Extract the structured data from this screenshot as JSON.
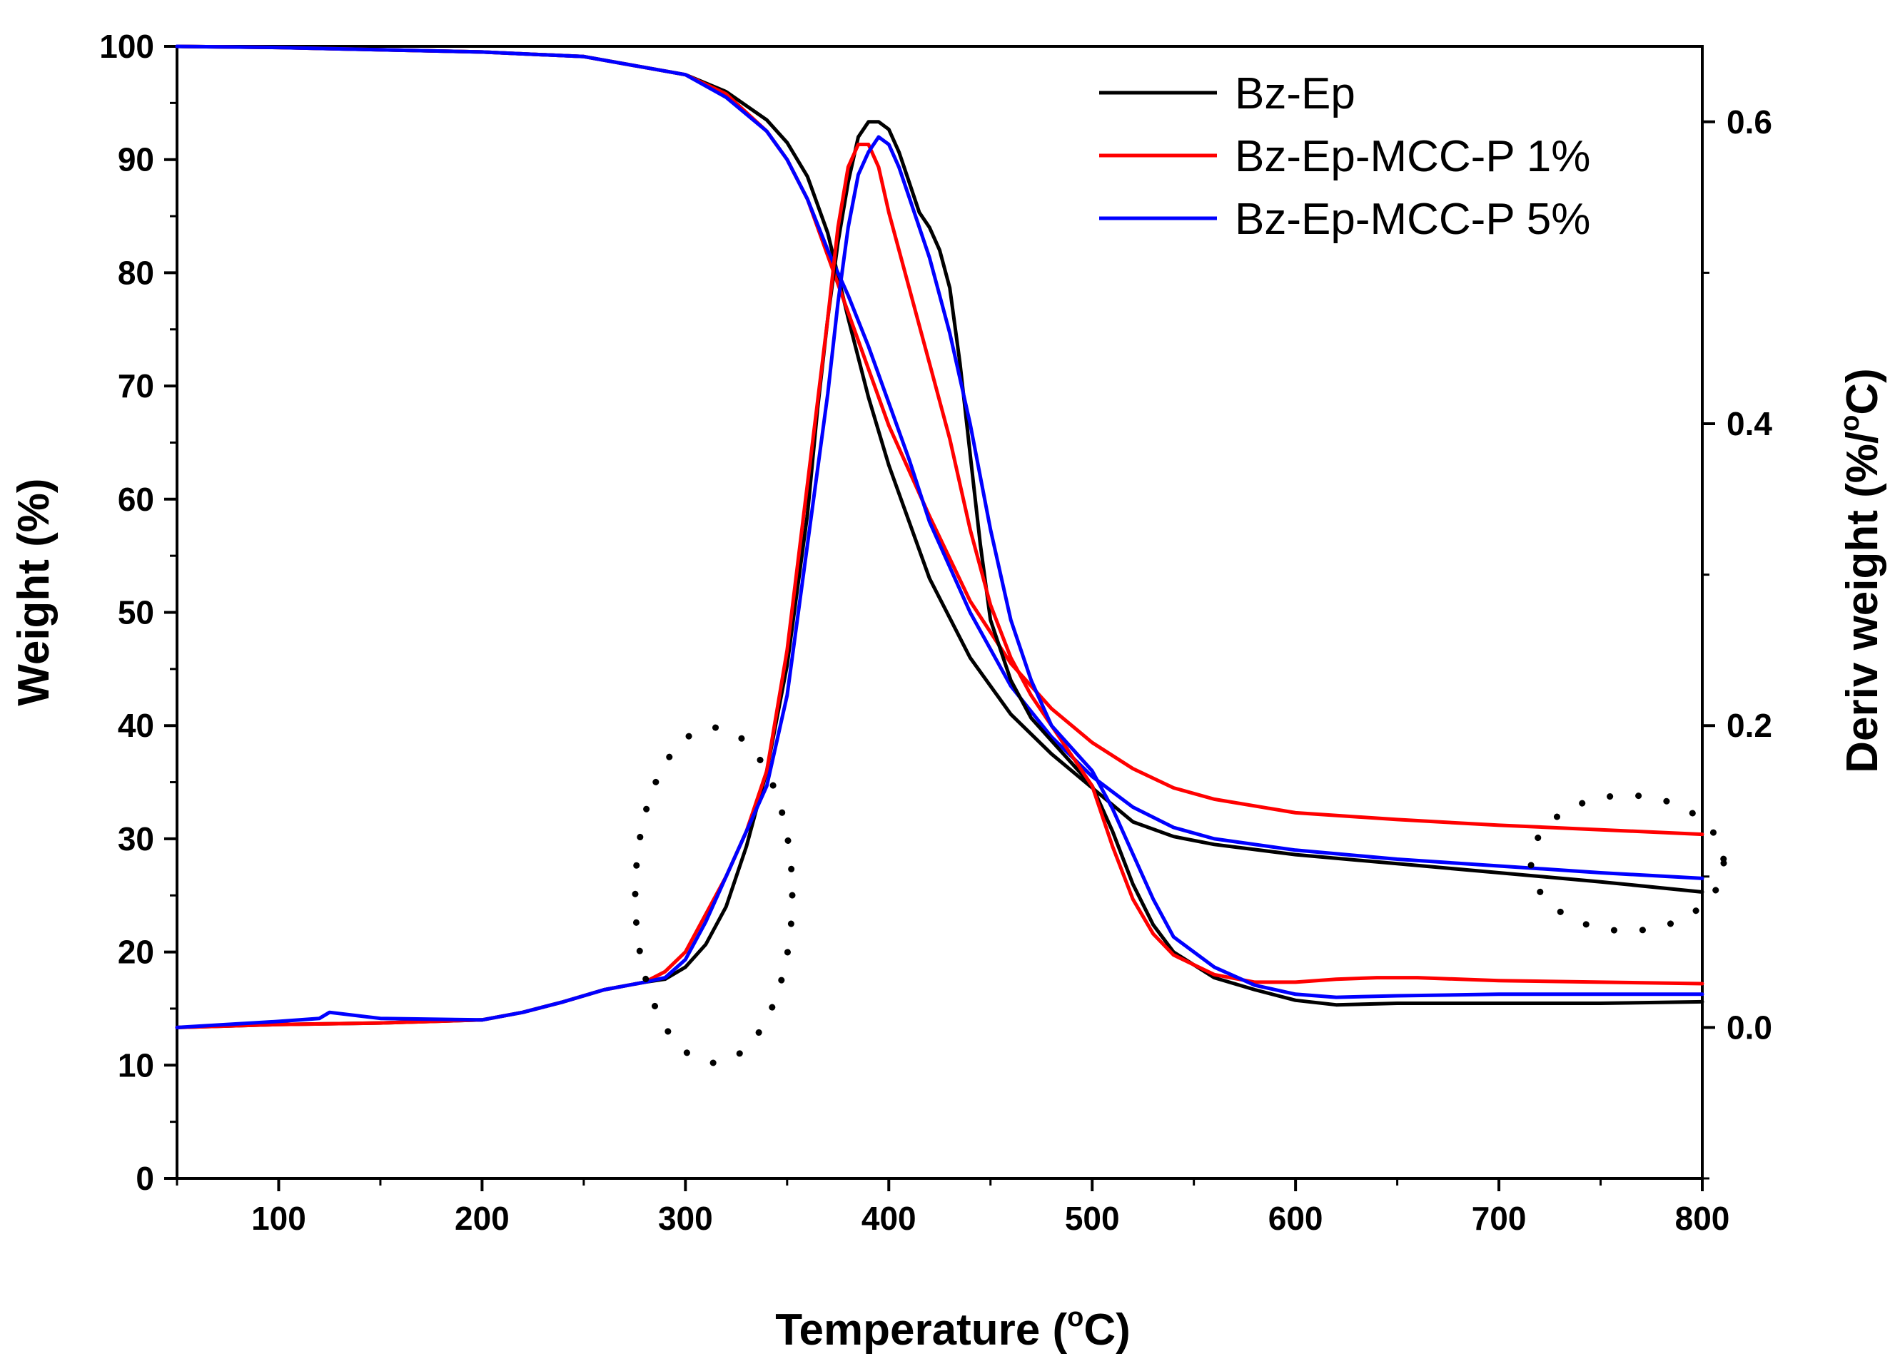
{
  "chart_data": {
    "type": "line",
    "title": "",
    "xlabel": "Temperature (",
    "xlabel_sup": "o",
    "xlabel_end": "C)",
    "ylabel": "Weight (%)",
    "y2label": "Deriv weight (%/",
    "y2label_sup": "o",
    "y2label_end": "C)",
    "xlim": [
      50,
      800
    ],
    "ylim": [
      0,
      100
    ],
    "y2lim": [
      -0.1,
      0.65
    ],
    "xticks": [
      100,
      200,
      300,
      400,
      500,
      600,
      700,
      800
    ],
    "yticks": [
      0,
      10,
      20,
      30,
      40,
      50,
      60,
      70,
      80,
      90,
      100
    ],
    "y2ticks": [
      0.0,
      0.2,
      0.4,
      0.6
    ],
    "y2tick_labels": [
      "0.0",
      "0.2",
      "0.4",
      "0.6"
    ],
    "legend": [
      "Bz-Ep",
      "Bz-Ep-MCC-P 1%",
      "Bz-Ep-MCC-P 5%"
    ],
    "colors": [
      "#000000",
      "#ff0000",
      "#0000ff"
    ],
    "weight_series": [
      {
        "name": "Bz-Ep",
        "axis": "left",
        "x": [
          50,
          100,
          200,
          250,
          300,
          320,
          340,
          350,
          360,
          370,
          380,
          390,
          400,
          410,
          420,
          440,
          460,
          480,
          500,
          520,
          540,
          560,
          600,
          650,
          700,
          750,
          800
        ],
        "y": [
          100,
          99.9,
          99.5,
          99.1,
          97.5,
          96,
          93.5,
          91.5,
          88.5,
          83.5,
          76,
          69,
          63,
          58,
          53,
          46,
          41,
          37.5,
          34.5,
          31.5,
          30.2,
          29.5,
          28.6,
          27.8,
          27,
          26.2,
          25.3
        ]
      },
      {
        "name": "Bz-Ep-MCC-P 1%",
        "axis": "left",
        "x": [
          50,
          100,
          200,
          250,
          300,
          320,
          340,
          350,
          360,
          370,
          380,
          390,
          400,
          410,
          420,
          440,
          460,
          480,
          500,
          520,
          540,
          560,
          600,
          650,
          700,
          750,
          800
        ],
        "y": [
          100,
          99.9,
          99.5,
          99.1,
          97.5,
          95.8,
          92.5,
          90,
          86.5,
          81.5,
          76.5,
          71.5,
          66.5,
          62.5,
          58.5,
          51,
          45.5,
          41.5,
          38.5,
          36.2,
          34.5,
          33.5,
          32.3,
          31.7,
          31.2,
          30.8,
          30.4
        ]
      },
      {
        "name": "Bz-Ep-MCC-P 5%",
        "axis": "left",
        "x": [
          50,
          100,
          200,
          250,
          300,
          320,
          340,
          350,
          360,
          370,
          380,
          390,
          400,
          410,
          420,
          440,
          460,
          480,
          500,
          520,
          540,
          560,
          600,
          650,
          700,
          750,
          800
        ],
        "y": [
          100,
          99.9,
          99.5,
          99.1,
          97.5,
          95.5,
          92.5,
          90,
          86.5,
          82,
          78,
          73.5,
          68.5,
          63.5,
          58,
          50,
          43.5,
          39,
          35.5,
          32.8,
          31,
          30,
          29,
          28.2,
          27.6,
          27,
          26.5
        ]
      }
    ],
    "deriv_series": [
      {
        "name": "Bz-Ep",
        "axis": "right",
        "x": [
          50,
          100,
          150,
          200,
          220,
          240,
          260,
          280,
          290,
          300,
          310,
          320,
          330,
          340,
          350,
          360,
          365,
          370,
          375,
          380,
          385,
          390,
          395,
          400,
          405,
          410,
          415,
          420,
          425,
          430,
          435,
          440,
          445,
          450,
          460,
          470,
          480,
          490,
          500,
          510,
          520,
          530,
          540,
          560,
          580,
          600,
          620,
          650,
          700,
          750,
          800
        ],
        "y": [
          0.0,
          0.002,
          0.003,
          0.005,
          0.01,
          0.017,
          0.025,
          0.03,
          0.032,
          0.04,
          0.055,
          0.08,
          0.12,
          0.17,
          0.24,
          0.34,
          0.41,
          0.47,
          0.52,
          0.56,
          0.59,
          0.6,
          0.6,
          0.595,
          0.58,
          0.56,
          0.54,
          0.53,
          0.515,
          0.49,
          0.44,
          0.38,
          0.32,
          0.27,
          0.23,
          0.205,
          0.19,
          0.175,
          0.16,
          0.13,
          0.095,
          0.068,
          0.05,
          0.033,
          0.025,
          0.018,
          0.015,
          0.016,
          0.016,
          0.016,
          0.017
        ]
      },
      {
        "name": "Bz-Ep-MCC-P 1%",
        "axis": "right",
        "x": [
          50,
          100,
          150,
          200,
          220,
          240,
          260,
          280,
          290,
          300,
          310,
          320,
          330,
          340,
          350,
          360,
          370,
          375,
          380,
          385,
          390,
          395,
          400,
          410,
          420,
          430,
          440,
          450,
          460,
          470,
          480,
          490,
          500,
          510,
          520,
          530,
          540,
          560,
          580,
          600,
          620,
          640,
          660,
          700,
          750,
          800
        ],
        "y": [
          0.0,
          0.002,
          0.003,
          0.005,
          0.01,
          0.017,
          0.025,
          0.03,
          0.037,
          0.05,
          0.075,
          0.1,
          0.13,
          0.17,
          0.25,
          0.36,
          0.47,
          0.53,
          0.57,
          0.585,
          0.585,
          0.57,
          0.54,
          0.49,
          0.44,
          0.39,
          0.33,
          0.28,
          0.245,
          0.22,
          0.2,
          0.18,
          0.16,
          0.12,
          0.085,
          0.062,
          0.048,
          0.035,
          0.03,
          0.03,
          0.032,
          0.033,
          0.033,
          0.031,
          0.03,
          0.029
        ]
      },
      {
        "name": "Bz-Ep-MCC-P 5%",
        "axis": "right",
        "x": [
          50,
          100,
          120,
          125,
          150,
          200,
          220,
          240,
          260,
          280,
          290,
          300,
          310,
          320,
          330,
          340,
          350,
          360,
          370,
          375,
          380,
          385,
          390,
          395,
          400,
          405,
          410,
          420,
          430,
          440,
          450,
          460,
          470,
          480,
          490,
          500,
          510,
          520,
          530,
          540,
          560,
          580,
          600,
          620,
          650,
          700,
          750,
          800
        ],
        "y": [
          0.0,
          0.004,
          0.006,
          0.01,
          0.006,
          0.005,
          0.01,
          0.017,
          0.025,
          0.03,
          0.033,
          0.045,
          0.07,
          0.1,
          0.13,
          0.16,
          0.22,
          0.32,
          0.42,
          0.48,
          0.53,
          0.565,
          0.58,
          0.59,
          0.585,
          0.57,
          0.55,
          0.51,
          0.46,
          0.4,
          0.33,
          0.27,
          0.23,
          0.2,
          0.185,
          0.17,
          0.145,
          0.115,
          0.085,
          0.06,
          0.04,
          0.028,
          0.022,
          0.02,
          0.021,
          0.022,
          0.022,
          0.022
        ]
      }
    ],
    "annotations": [
      "dotted ellipse around onset near 280-350",
      "dotted ellipse around residues near 730-800"
    ]
  }
}
